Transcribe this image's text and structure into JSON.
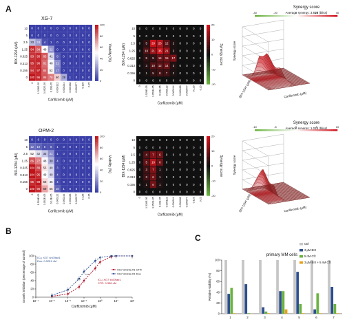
{
  "panels": {
    "A": "A",
    "B": "B",
    "C": "C"
  },
  "colors": {
    "heat_blue": "#3a3fa8",
    "heat_red": "#c0141a",
    "syn_dark": "#111111",
    "syn_red": "#d0121b",
    "syn_green": "#6ab23f",
    "ctrl_gray": "#c6c6c6",
    "bix_blue": "#2e4f8f",
    "cfz_green": "#6ab23f",
    "combo_orange": "#e8a11a"
  },
  "heatmap_common": {
    "y_title": "BIX-1294 (μM)",
    "x_title": "Carfilzomib (μM)",
    "y_ticks": [
      "10",
      "5",
      "2.5",
      "1.25",
      "0.625",
      "0.313",
      "0.156",
      "0"
    ],
    "x_ticks": [
      "0",
      "1.526E-05",
      "3.052E-05",
      "6.10E-05",
      "0.000122",
      "0.000244",
      "0.000488",
      "0.000977",
      "0.125",
      "0.25"
    ],
    "viability_title": "Viability (%)",
    "viability_ticks": [
      "100",
      "80",
      "60",
      "40",
      "20",
      "0"
    ],
    "synergy_title": "Synergy score",
    "synergy_ticks": [
      "20",
      "10",
      "0",
      "-10",
      "-20"
    ]
  },
  "xg7": {
    "name": "XG-7",
    "viability": [
      [
        0,
        0,
        0,
        0,
        0,
        0,
        0,
        0,
        0,
        0
      ],
      [
        0,
        0,
        0,
        0,
        0,
        0,
        0,
        0,
        0,
        0
      ],
      [
        33,
        24,
        4,
        1,
        0,
        0,
        0,
        0,
        0,
        0
      ],
      [
        94,
        84,
        49,
        22,
        0,
        0,
        0,
        0,
        0,
        0
      ],
      [
        93,
        95,
        85,
        41,
        8,
        0,
        0,
        0,
        0,
        0
      ],
      [
        95,
        96,
        81,
        48,
        21,
        0,
        0,
        0,
        0,
        0
      ],
      [
        94,
        97,
        84,
        52,
        17,
        0,
        0,
        0,
        0,
        0
      ],
      [
        100,
        96,
        86,
        78,
        60,
        28,
        1,
        0,
        0,
        0
      ]
    ],
    "synergy": [
      [
        0,
        0,
        0,
        0,
        0,
        0,
        0,
        0,
        0,
        0
      ],
      [
        0,
        0,
        0,
        0,
        0,
        0,
        0,
        0,
        0,
        0
      ],
      [
        0,
        5,
        29,
        26,
        12,
        2,
        0,
        0,
        0,
        0
      ],
      [
        0,
        10,
        21,
        35,
        21,
        2,
        0,
        0,
        0,
        0
      ],
      [
        0,
        5,
        5,
        14,
        15,
        17,
        0,
        0,
        0,
        0
      ],
      [
        0,
        3,
        10,
        12,
        14,
        3,
        0,
        0,
        0,
        0
      ],
      [
        0,
        1,
        5,
        8,
        7,
        2,
        0,
        0,
        0,
        0
      ],
      [
        0,
        0,
        0,
        0,
        0,
        0,
        0,
        0,
        0,
        0
      ]
    ],
    "avg_synergy": "Average synergy: 3.819 (bliss)",
    "score_ticks": [
      "-40",
      "-20",
      "0",
      "20",
      "40"
    ]
  },
  "opm2": {
    "name": "OPM-2",
    "viability": [
      [
        0,
        0,
        0,
        0,
        0,
        0,
        0,
        0,
        0,
        0
      ],
      [
        12,
        10,
        5,
        6,
        1,
        0,
        0,
        0,
        0,
        0
      ],
      [
        52,
        42,
        35,
        21,
        1,
        0,
        0,
        0,
        0,
        0
      ],
      [
        86,
        77,
        48,
        30,
        4,
        0,
        0,
        0,
        0,
        0
      ],
      [
        104,
        89,
        55,
        40,
        3,
        0,
        0,
        0,
        0,
        0
      ],
      [
        104,
        95,
        49,
        40,
        4,
        0,
        0,
        0,
        0,
        0
      ],
      [
        95,
        99,
        58,
        46,
        4,
        0,
        0,
        0,
        0,
        0
      ],
      [
        100,
        95,
        69,
        55,
        10,
        1,
        0,
        0,
        0,
        0
      ]
    ],
    "synergy": [
      [
        0,
        0,
        0,
        0,
        0,
        0,
        0,
        0,
        0,
        0
      ],
      [
        0,
        0,
        0,
        0,
        0,
        0,
        0,
        0,
        0,
        0
      ],
      [
        0,
        4,
        7,
        6,
        0,
        0,
        0,
        0,
        0,
        0
      ],
      [
        0,
        5,
        10,
        6,
        0,
        0,
        0,
        0,
        0,
        0
      ],
      [
        0,
        3,
        7,
        1,
        0,
        0,
        0,
        0,
        0,
        0
      ],
      [
        0,
        3,
        6,
        1,
        0,
        0,
        0,
        0,
        0,
        0
      ],
      [
        0,
        1,
        6,
        1,
        0,
        0,
        0,
        0,
        0,
        0
      ],
      [
        0,
        0,
        0,
        0,
        0,
        0,
        0,
        0,
        0,
        0
      ]
    ],
    "avg_synergy": "Average synergy: 1.016 (bliss)",
    "score_ticks": [
      "-10",
      "-5",
      "0",
      "5",
      "10"
    ]
  },
  "synergy_score_label": "Synergy score",
  "surface_labels": {
    "z": "Synergy score",
    "y": "BIX-1294 (μM)",
    "x": "Carfilzomib (μM)"
  },
  "chart_data": [
    {
      "type": "line",
      "panel": "B",
      "xlabel": "Carfilzomib (μM)",
      "ylabel": "Growth inhibition (percentage of control)",
      "xscale": "log",
      "xlim": [
        0.0001,
        100
      ],
      "ylim": [
        0,
        100
      ],
      "x_tick_labels": [
        "10⁻⁴",
        "10⁻³",
        "10⁻²",
        "10⁻¹",
        "10⁰",
        "10¹",
        "10²"
      ],
      "y_tick_labels": [
        "0",
        "20",
        "40",
        "60",
        "80",
        "100"
      ],
      "annotations": [
        {
          "lines": [
            "IC₅₀ XG7 shG9a#1",
            "Dox: 0.0251 nM"
          ]
        },
        {
          "lines": [
            "IC₅₀ XG7 shG9a#1",
            "CTR: 0.358 nM"
          ]
        },
        {
          "text": "***"
        },
        {
          "text": "***"
        }
      ],
      "series": [
        {
          "name": "XG7 shG9a #1 CTR",
          "x": [
            0.001,
            0.01,
            0.05,
            0.1,
            0.5,
            1,
            5,
            10,
            100
          ],
          "y": [
            2,
            8,
            25,
            40,
            70,
            85,
            98,
            100,
            100
          ]
        },
        {
          "name": "XG7 shG9a #1 Dox",
          "x": [
            0.001,
            0.01,
            0.05,
            0.1,
            0.5,
            1,
            5,
            10,
            100
          ],
          "y": [
            4,
            18,
            45,
            62,
            88,
            96,
            100,
            100,
            100
          ]
        }
      ]
    },
    {
      "type": "bar",
      "panel": "C",
      "title": "primary MM cells",
      "ylabel": "Relative viability (%)",
      "ylim": [
        0,
        100
      ],
      "y_tick_labels": [
        "0",
        "20",
        "40",
        "60",
        "80",
        "100"
      ],
      "categories": [
        "1",
        "2",
        "3",
        "4",
        "5",
        "6",
        "7"
      ],
      "series": [
        {
          "name": "Ctrl",
          "values": [
            100,
            100,
            100,
            100,
            100,
            100,
            100
          ]
        },
        {
          "name": "3 μM BIX",
          "values": [
            37,
            55,
            12,
            42,
            78,
            8,
            50
          ]
        },
        {
          "name": "5 nM Cfz",
          "values": [
            48,
            1,
            4,
            42,
            18,
            38,
            18
          ]
        },
        {
          "name": "3 μM BIX + 5 nM Cfz",
          "values": [
            1,
            0,
            1,
            8,
            1,
            1,
            1
          ]
        }
      ]
    }
  ]
}
